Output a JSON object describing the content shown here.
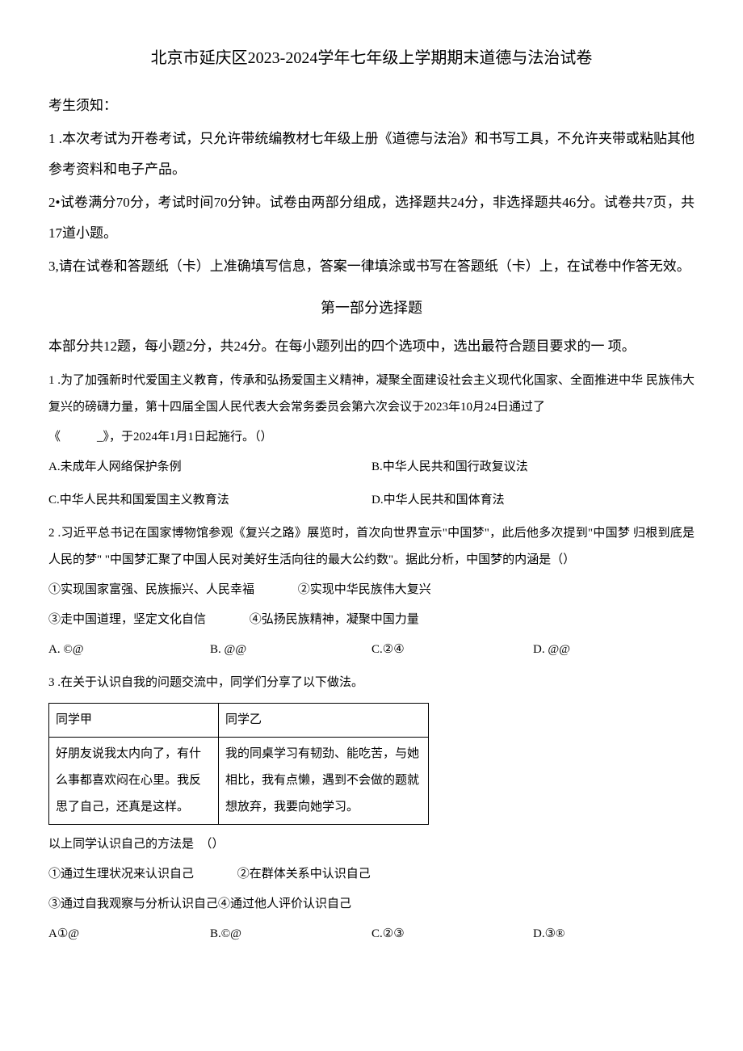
{
  "title": "北京市延庆区2023-2024学年七年级上学期期末道德与法治试卷",
  "notice": {
    "heading": "考生须知：",
    "items": [
      "1 .本次考试为开卷考试，只允许带统编教材七年级上册《道德与法治》和书写工具，不允许夹带或粘贴其他参考资料和电子产品。",
      "2•试卷满分70分，考试时间70分钟。试卷由两部分组成，选择题共24分，非选择题共46分。试卷共7页，共17道小题。",
      "3,请在试卷和答题纸（卡）上准确填写信息，答案一律填涂或书写在答题纸（卡）上，在试卷中作答无效。"
    ]
  },
  "section1": {
    "title": "第一部分选择题",
    "desc": "本部分共12题，每小题2分，共24分。在每小题列出的四个选项中，选出最符合题目要求的一 项。"
  },
  "q1": {
    "stem_part1": "1 .为了加强新时代爱国主义教育，传承和弘扬爱国主义精神，凝聚全面建设社会主义现代化国家、全面推进中华 民族伟大复兴的磅礴力量，第十四届全国人民代表大会常务委员会第六次会议于2023年10月24日通过了",
    "stem_part2_prefix": "《　　　_》，于2024年1月1日起施行。（）",
    "options": {
      "A": "A.未成年人网络保护条例",
      "B": "B.中华人民共和国行政复议法",
      "C": "C.中华人民共和国爱国主义教育法",
      "D": "D.中华人民共和国体育法"
    }
  },
  "q2": {
    "stem": "2 .习近平总书记在国家博物馆参观《复兴之路》展览时，首次向世界宣示\"中国梦\"，此后他多次提到\"中国梦 归根到底是人民的梦\" \"中国梦汇聚了中国人民对美好生活向往的最大公约数\"。据此分析，中国梦的内涵是（）",
    "subs": {
      "s1": "①实现国家富强、民族振兴、人民幸福",
      "s2": "②实现中华民族伟大复兴",
      "s3": "③走中国道理，坚定文化自信",
      "s4": "④弘扬民族精神，凝聚中国力量"
    },
    "options": {
      "A": "A. ©@",
      "B": "B. @@",
      "C": "C.②④",
      "D": "D. @@"
    }
  },
  "q3": {
    "stem": "3 .在关于认识自我的问题交流中，同学们分享了以下做法。",
    "table": {
      "header": {
        "c1": "同学甲",
        "c2": "同学乙"
      },
      "row": {
        "c1": "好朋友说我太内向了，有什么事都喜欢闷在心里。我反思了自己，还真是这样。",
        "c2": "我的同桌学习有韧劲、能吃苦，与她相比，我有点懒，遇到不会做的题就想放弃，我要向她学习。"
      }
    },
    "prompt": "以上同学认识自己的方法是　（）",
    "subs": {
      "s1": "①通过生理状况来认识自己",
      "s2": "②在群体关系中认识自己",
      "s3": "③通过自我观察与分析认识自己④通过他人评价认识自己"
    },
    "options": {
      "A": "A①@",
      "B": "B.©@",
      "C": "C.②③",
      "D": "D.③®"
    }
  }
}
